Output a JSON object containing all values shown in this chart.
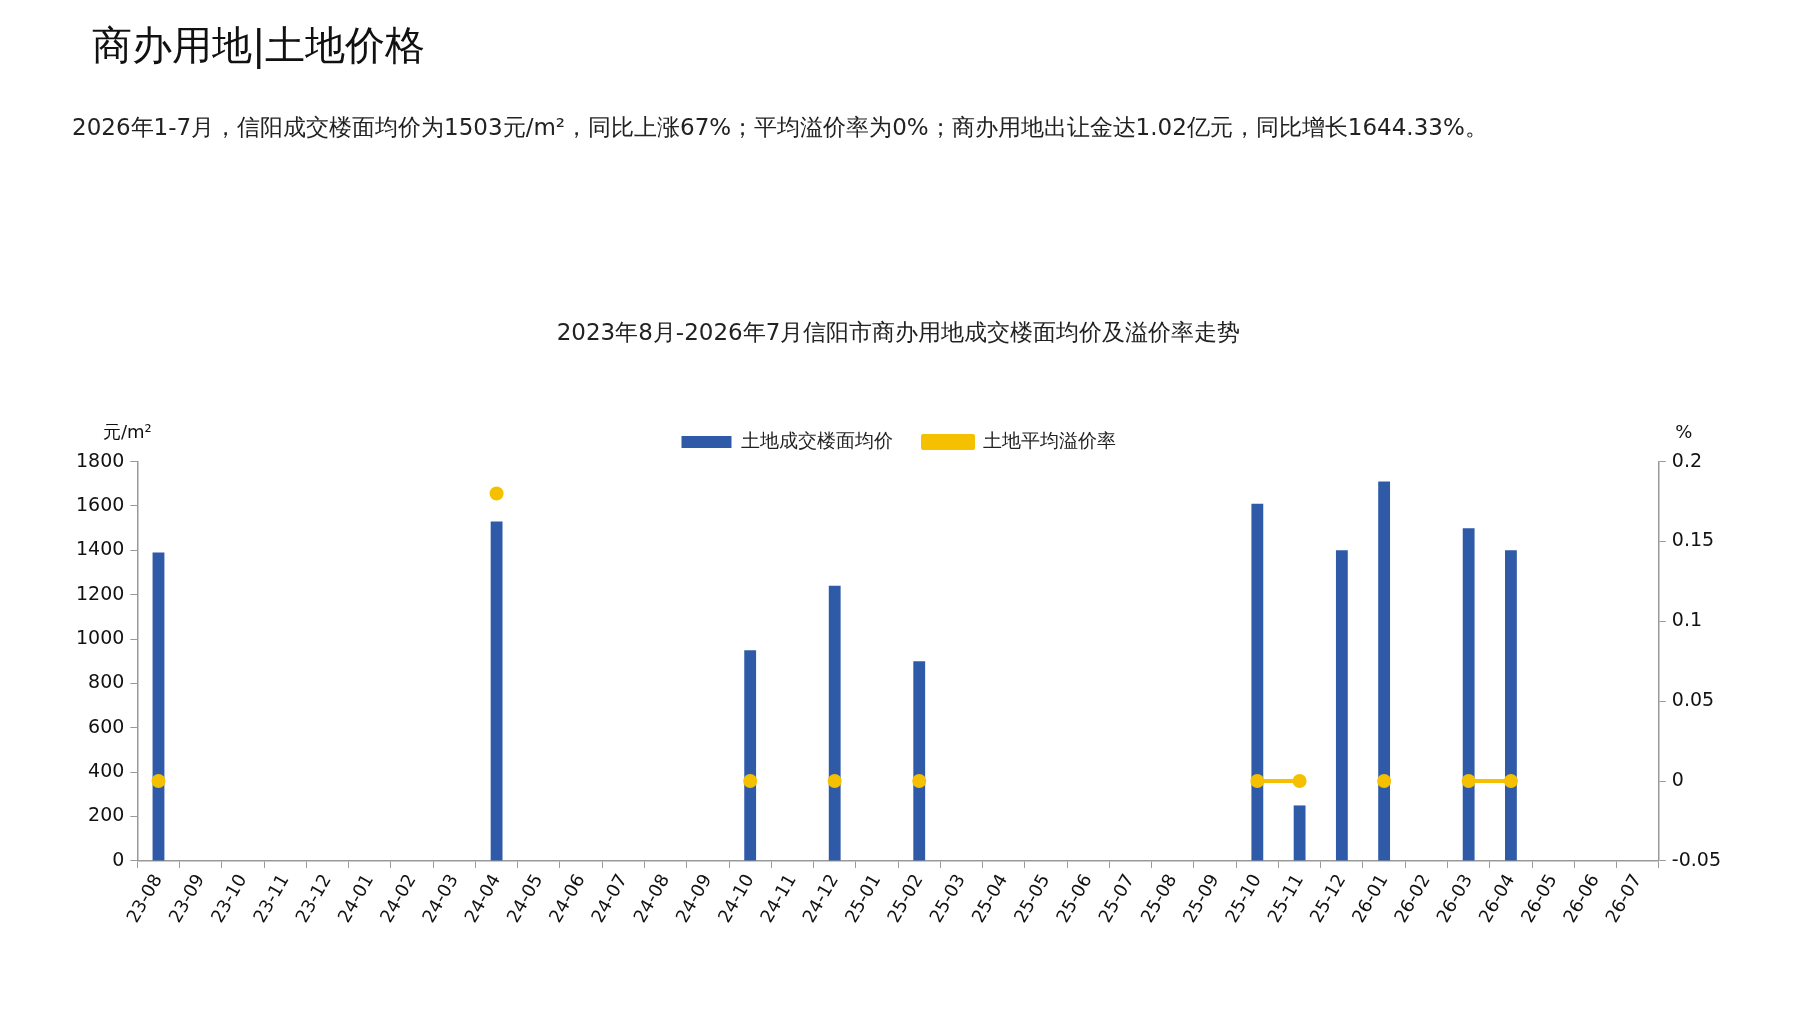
{
  "chart_data": {
    "type": "bar",
    "title": "2023年8月-2026年7月信阳市商办用地成交楼面均价及溢价率走势",
    "annotations": [
      "商办用地|土地价格",
      "2026年1-7月，信阳成交楼面均价为1503元/m²，同比上涨67%；平均溢价率为0%；商办用地出让金达1.02亿元，同比增长1644.33%。"
    ],
    "ylabel": "元/m²",
    "y2label": "%",
    "categories": [
      "23-08",
      "23-09",
      "23-10",
      "23-11",
      "23-12",
      "24-01",
      "24-02",
      "24-03",
      "24-04",
      "24-05",
      "24-06",
      "24-07",
      "24-08",
      "24-09",
      "24-10",
      "24-11",
      "24-12",
      "25-01",
      "25-02",
      "25-03",
      "25-04",
      "25-05",
      "25-06",
      "25-07",
      "25-08",
      "25-09",
      "25-10",
      "25-11",
      "25-12",
      "26-01",
      "26-02",
      "26-03",
      "26-04",
      "26-05",
      "26-06",
      "26-07"
    ],
    "series": [
      {
        "name": "土地成交楼面均价",
        "color": "#2e5aa8",
        "values": [
          1390,
          null,
          null,
          null,
          null,
          null,
          null,
          null,
          1530,
          null,
          null,
          null,
          null,
          null,
          950,
          null,
          1240,
          null,
          900,
          null,
          null,
          null,
          null,
          null,
          null,
          null,
          1610,
          250,
          1400,
          1710,
          null,
          1500,
          1400,
          null,
          null,
          null
        ]
      },
      {
        "name": "土地平均溢价率",
        "type": "line",
        "axis": "y2",
        "color": "#f5c000",
        "marker": "circle",
        "values": [
          0,
          null,
          null,
          null,
          null,
          null,
          null,
          null,
          0.18,
          null,
          null,
          null,
          null,
          null,
          0,
          null,
          0,
          null,
          0,
          null,
          null,
          null,
          null,
          null,
          null,
          null,
          0,
          0,
          null,
          0,
          null,
          0,
          0,
          null,
          null,
          null
        ]
      }
    ],
    "ylim": [
      0,
      1800
    ],
    "yticks": [
      0,
      200,
      400,
      600,
      800,
      1000,
      1200,
      1400,
      1600,
      1800
    ],
    "y2lim": [
      -0.05,
      0.2
    ],
    "y2ticks": [
      -0.05,
      0,
      0.05,
      0.1,
      0.15,
      0.2
    ],
    "grid": false,
    "legend": "top"
  }
}
